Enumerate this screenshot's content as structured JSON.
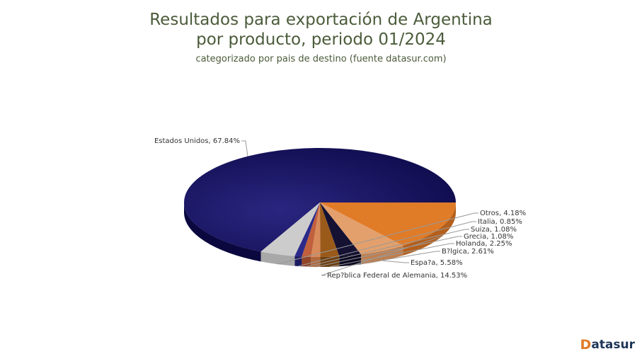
{
  "chart_data": {
    "type": "pie",
    "title_line1": "Resultados para exportación de Argentina",
    "title_line2": "por producto, periodo 01/2024",
    "subtitle": "categorizado por pais de destino (fuente datasur.com)",
    "slices": [
      {
        "label": "Estados Unidos",
        "value": 67.84,
        "text": "Estados Unidos, 67.84%",
        "color": "#100c5a",
        "side": "#0b0840"
      },
      {
        "label": "Rep?blica Federal de Alemania",
        "value": 14.53,
        "text": "Rep?blica Federal de Alemania, 14.53%",
        "color": "#e07b28",
        "side": "#b45f1c"
      },
      {
        "label": "Espa?a",
        "value": 5.58,
        "text": "Espa?a, 5.58%",
        "color": "#e3a06c",
        "side": "#bf7f4f"
      },
      {
        "label": "B?lgica",
        "value": 2.61,
        "text": "B?lgica, 2.61%",
        "color": "#141133",
        "side": "#0a0820"
      },
      {
        "label": "Holanda",
        "value": 2.25,
        "text": "Holanda, 2.25%",
        "color": "#9a5a1a",
        "side": "#6e3f10"
      },
      {
        "label": "Grecia",
        "value": 1.08,
        "text": "Grecia, 1.08%",
        "color": "#d98a5a",
        "side": "#b06a3e"
      },
      {
        "label": "Suiza",
        "value": 1.08,
        "text": "Suiza, 1.08%",
        "color": "#c0603c",
        "side": "#944628"
      },
      {
        "label": "Italia",
        "value": 0.85,
        "text": "Italia, 0.85%",
        "color": "#2b2a8a",
        "side": "#1c1b62"
      },
      {
        "label": "Otros",
        "value": 4.18,
        "text": "Otros, 4.18%",
        "color": "#cccccc",
        "side": "#a8a8a8"
      }
    ],
    "legend": "none"
  },
  "brand": {
    "mark": "D",
    "name": "atasur"
  }
}
